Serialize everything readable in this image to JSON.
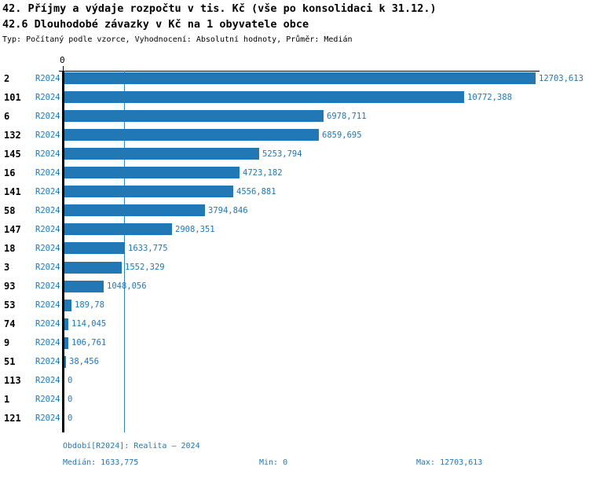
{
  "header": {
    "title1": "42. Příjmy a výdaje rozpočtu v tis. Kč (vše po konsolidaci k 31.12.)",
    "title2": "42.6 Dlouhodobé závazky v Kč na 1 obyvatele obce",
    "meta": "Typ: Počítaný podle vzorce, Vyhodnocení: Absolutní hodnoty, Průměr: Medián"
  },
  "chart_data": {
    "type": "bar",
    "orientation": "horizontal",
    "title": "42.6 Dlouhodobé závazky v Kč na 1 obyvatele obce",
    "xlabel": "",
    "ylabel": "",
    "xlim": [
      0,
      12703.613
    ],
    "x_tick_labels": [
      "0"
    ],
    "grid": false,
    "legend": false,
    "median_value": 1633.775,
    "median_line_shown": true,
    "period_label": "R2024",
    "categories": [
      "2",
      "101",
      "6",
      "132",
      "145",
      "16",
      "141",
      "58",
      "147",
      "18",
      "3",
      "93",
      "53",
      "74",
      "9",
      "51",
      "113",
      "1",
      "121"
    ],
    "series": [
      {
        "name": "R2024",
        "values": [
          12703.613,
          10772.388,
          6978.711,
          6859.695,
          5253.794,
          4723.182,
          4556.881,
          3794.846,
          2908.351,
          1633.775,
          1552.329,
          1048.056,
          189.78,
          114.045,
          106.761,
          38.456,
          0,
          0,
          0
        ],
        "value_labels": [
          "12703,613",
          "10772,388",
          "6978,711",
          "6859,695",
          "5253,794",
          "4723,182",
          "4556,881",
          "3794,846",
          "2908,351",
          "1633,775",
          "1552,329",
          "1048,056",
          "189,78",
          "114,045",
          "106,761",
          "38,456",
          "0",
          "0",
          "0"
        ]
      }
    ],
    "colors": {
      "bar": "#2277b5",
      "label_text": "#2277b5",
      "median_line": "#3583bb",
      "axis": "#000000"
    }
  },
  "axis": {
    "zero_label": "0"
  },
  "footer": {
    "period_line": "Období[R2024]: Realita – 2024",
    "median": "Medián: 1633,775",
    "min": "Min: 0",
    "max": "Max: 12703,613"
  }
}
